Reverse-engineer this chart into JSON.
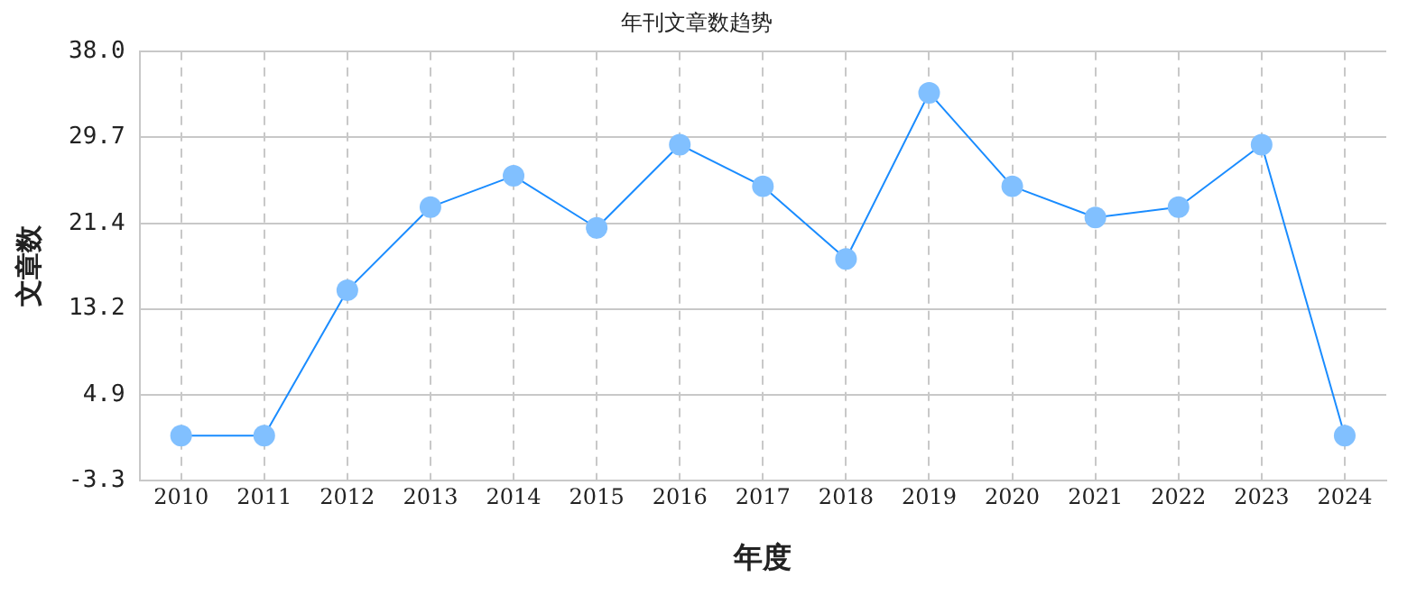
{
  "chart_data": {
    "type": "line",
    "title": "年刊文章数趋势",
    "xlabel": "年度",
    "ylabel": "文章数",
    "categories": [
      "2010",
      "2011",
      "2012",
      "2013",
      "2014",
      "2015",
      "2016",
      "2017",
      "2018",
      "2019",
      "2020",
      "2021",
      "2022",
      "2023",
      "2024"
    ],
    "series": [
      {
        "color": "#1a8cff",
        "values": [
          1,
          1,
          15,
          23,
          26,
          21,
          29,
          25,
          18,
          34,
          25,
          22,
          23,
          29,
          1
        ]
      }
    ],
    "ylim": [
      -3.3,
      38.0
    ],
    "yticks": [
      {
        "value": -3.3,
        "label": "-3.3"
      },
      {
        "value": 4.9,
        "label": "4.9"
      },
      {
        "value": 13.2,
        "label": "13.2"
      },
      {
        "value": 21.4,
        "label": "21.4"
      },
      {
        "value": 29.7,
        "label": "29.7"
      },
      {
        "value": 38.0,
        "label": "38.0"
      }
    ],
    "grid": true,
    "legend": false,
    "marker": "circle",
    "line_style": "solid"
  }
}
